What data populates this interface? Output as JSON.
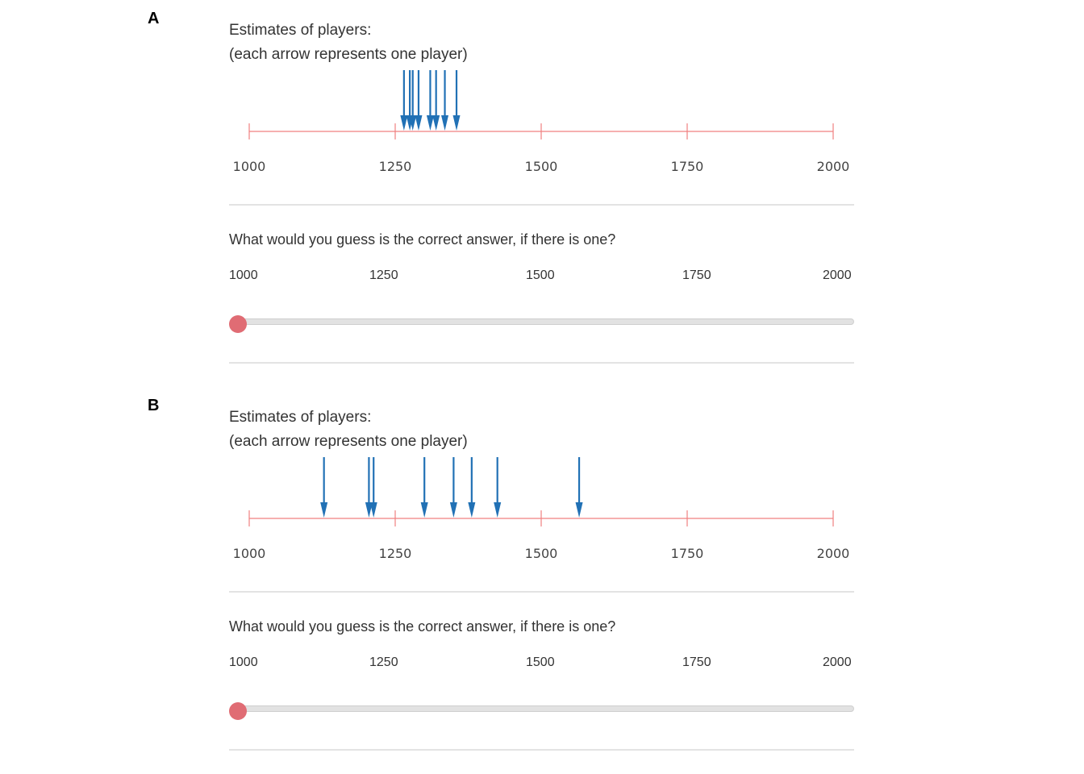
{
  "panels": [
    {
      "label": "A",
      "estimates_title": "Estimates of players:",
      "estimates_subtitle": "(each arrow represents one player)",
      "axis": {
        "min": 1000,
        "max": 2000,
        "ticks": [
          "1000",
          "1250",
          "1500",
          "1750",
          "2000"
        ],
        "tick_values": [
          1000,
          1250,
          1500,
          1750,
          2000
        ],
        "line_color": "#f08080"
      },
      "player_estimates": [
        1265,
        1275,
        1280,
        1290,
        1310,
        1320,
        1335,
        1355
      ],
      "arrow_color": "#2171b5",
      "question": "What would you guess is the correct answer, if there is one?",
      "slider": {
        "labels": [
          "1000",
          "1250",
          "1500",
          "1750",
          "2000"
        ],
        "min": 1000,
        "max": 2000,
        "value": 1000,
        "handle_color": "#e06c74"
      }
    },
    {
      "label": "B",
      "estimates_title": "Estimates of players:",
      "estimates_subtitle": "(each arrow represents one player)",
      "axis": {
        "min": 1000,
        "max": 2000,
        "ticks": [
          "1000",
          "1250",
          "1500",
          "1750",
          "2000"
        ],
        "tick_values": [
          1000,
          1250,
          1500,
          1750,
          2000
        ],
        "line_color": "#f08080"
      },
      "player_estimates": [
        1128,
        1205,
        1213,
        1300,
        1350,
        1381,
        1425,
        1565
      ],
      "arrow_color": "#2171b5",
      "question": "What would you guess is the correct answer, if there is one?",
      "slider": {
        "labels": [
          "1000",
          "1250",
          "1500",
          "1750",
          "2000"
        ],
        "min": 1000,
        "max": 2000,
        "value": 1000,
        "handle_color": "#e06c74"
      }
    }
  ]
}
